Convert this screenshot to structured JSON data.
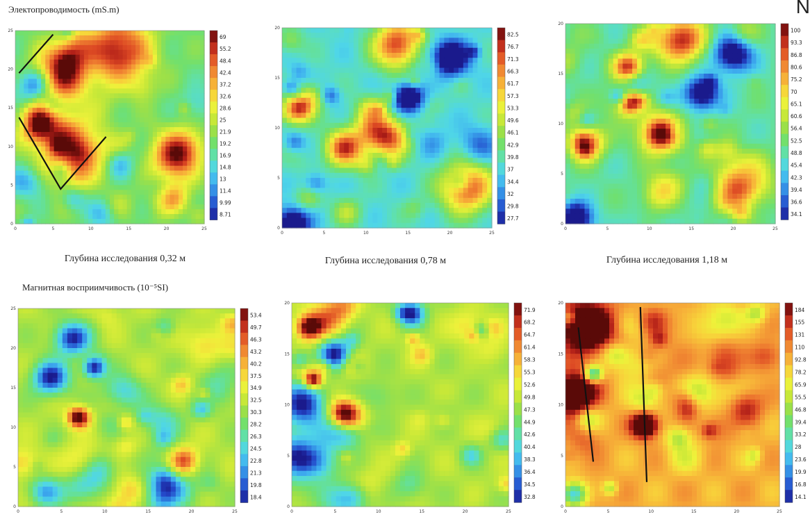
{
  "figure": {
    "top_section_title": "Электопроводимость (mS.m)",
    "bottom_section_title": "Магнитная восприимчивость (10⁻⁵SI)",
    "corner_mark": "N",
    "depth_captions": [
      "Глубина исследования 0,32 м",
      "Глубина исследования 0,78 м",
      "Глубина исследования 1,18 м"
    ]
  },
  "chart_data": [
    {
      "type": "heatmap",
      "quantity": "conductivity",
      "seed": 11,
      "hot": [
        [
          0.55,
          0.9,
          0.16
        ],
        [
          0.25,
          0.78,
          0.14
        ],
        [
          0.3,
          0.38,
          0.16
        ],
        [
          0.12,
          0.52,
          0.1
        ],
        [
          0.85,
          0.35,
          0.12
        ]
      ],
      "cold": [],
      "bias": 0.4,
      "colorbar_ticks": [
        "69",
        "55.2",
        "48.4",
        "42.4",
        "37.2",
        "32.6",
        "28.6",
        "25",
        "21.9",
        "19.2",
        "16.9",
        "14.8",
        "13",
        "11.4",
        "9.99",
        "8.71"
      ],
      "lines": [
        [
          [
            0.02,
            0.78
          ],
          [
            0.2,
            0.98
          ]
        ],
        [
          [
            0.02,
            0.55
          ],
          [
            0.24,
            0.18
          ],
          [
            0.48,
            0.45
          ]
        ]
      ],
      "x_ticks": [
        "0",
        "5",
        "10",
        "15",
        "20",
        "25"
      ],
      "y_ticks": [
        "0",
        "5",
        "10",
        "15",
        "20",
        "25"
      ]
    },
    {
      "type": "heatmap",
      "quantity": "conductivity",
      "seed": 23,
      "hot": [
        [
          0.55,
          0.92,
          0.11
        ],
        [
          0.5,
          0.45,
          0.1
        ],
        [
          0.88,
          0.2,
          0.12
        ],
        [
          0.3,
          0.4,
          0.09
        ],
        [
          0.08,
          0.6,
          0.07
        ]
      ],
      "cold": [
        [
          0.8,
          0.85,
          0.09
        ],
        [
          0.6,
          0.65,
          0.07
        ],
        [
          0.05,
          0.02,
          0.08
        ]
      ],
      "bias": 0.3,
      "colorbar_ticks": [
        "82.5",
        "76.7",
        "71.3",
        "66.3",
        "61.7",
        "57.3",
        "53.3",
        "49.6",
        "46.1",
        "42.9",
        "39.8",
        "37",
        "34.4",
        "32",
        "29.8",
        "27.7"
      ],
      "lines": [],
      "x_ticks": [
        "0",
        "5",
        "10",
        "15",
        "20",
        "25"
      ],
      "y_ticks": [
        "0",
        "5",
        "10",
        "15",
        "20"
      ]
    },
    {
      "type": "heatmap",
      "quantity": "conductivity",
      "seed": 37,
      "hot": [
        [
          0.55,
          0.92,
          0.11
        ],
        [
          0.45,
          0.45,
          0.1
        ],
        [
          0.85,
          0.22,
          0.12
        ],
        [
          0.1,
          0.4,
          0.08
        ],
        [
          0.3,
          0.78,
          0.07
        ]
      ],
      "cold": [
        [
          0.8,
          0.85,
          0.09
        ],
        [
          0.65,
          0.65,
          0.08
        ],
        [
          0.05,
          0.02,
          0.08
        ]
      ],
      "bias": 0.35,
      "colorbar_ticks": [
        "100",
        "93.3",
        "86.8",
        "80.6",
        "75.2",
        "70",
        "65.1",
        "60.6",
        "56.4",
        "52.5",
        "48.8",
        "45.4",
        "42.3",
        "39.4",
        "36.6",
        "34.1"
      ],
      "lines": [],
      "x_ticks": [
        "0",
        "5",
        "10",
        "15",
        "20",
        "25"
      ],
      "y_ticks": [
        "0",
        "5",
        "10",
        "15",
        "20"
      ]
    },
    {
      "type": "heatmap",
      "quantity": "magnetic_susceptibility",
      "seed": 51,
      "hot": [
        [
          0.28,
          0.45,
          0.05
        ]
      ],
      "cold": [
        [
          0.25,
          0.85,
          0.08
        ],
        [
          0.15,
          0.65,
          0.08
        ],
        [
          0.7,
          0.05,
          0.1
        ],
        [
          0.35,
          0.7,
          0.05
        ]
      ],
      "bias": 0.5,
      "colorbar_ticks": [
        "53.4",
        "49.7",
        "46.3",
        "43.2",
        "40.2",
        "37.5",
        "34.9",
        "32.5",
        "30.3",
        "28.2",
        "26.3",
        "24.5",
        "22.8",
        "21.3",
        "19.8",
        "18.4"
      ],
      "lines": [],
      "x_ticks": [
        "0",
        "5",
        "10",
        "15",
        "20",
        "25"
      ],
      "y_ticks": [
        "0",
        "5",
        "10",
        "15",
        "20",
        "25"
      ]
    },
    {
      "type": "heatmap",
      "quantity": "magnetic_susceptibility",
      "seed": 67,
      "hot": [
        [
          0.08,
          0.88,
          0.06
        ],
        [
          0.25,
          0.45,
          0.07
        ],
        [
          0.1,
          0.62,
          0.04
        ]
      ],
      "cold": [
        [
          0.05,
          0.5,
          0.1
        ],
        [
          0.06,
          0.25,
          0.12
        ],
        [
          0.2,
          0.75,
          0.07
        ],
        [
          0.55,
          0.95,
          0.06
        ]
      ],
      "bias": 0.5,
      "colorbar_ticks": [
        "71.9",
        "68.2",
        "64.7",
        "61.4",
        "58.3",
        "55.3",
        "52.6",
        "49.8",
        "47.3",
        "44.9",
        "42.6",
        "40.4",
        "38.3",
        "36.4",
        "34.5",
        "32.8"
      ],
      "lines": [],
      "x_ticks": [
        "0",
        "5",
        "10",
        "15",
        "20",
        "25"
      ],
      "y_ticks": [
        "0",
        "5",
        "10",
        "15",
        "20"
      ]
    },
    {
      "type": "heatmap",
      "quantity": "magnetic_susceptibility",
      "seed": 83,
      "hot": [
        [
          0.1,
          0.88,
          0.12
        ],
        [
          0.37,
          0.4,
          0.06
        ],
        [
          0.05,
          0.55,
          0.1
        ]
      ],
      "cold": [
        [
          0.13,
          0.65,
          0.04
        ],
        [
          0.04,
          0.06,
          0.06
        ]
      ],
      "bias": 0.72,
      "colorbar_ticks": [
        "184",
        "155",
        "131",
        "110",
        "92.8",
        "78.2",
        "65.9",
        "55.5",
        "46.8",
        "39.4",
        "33.2",
        "28",
        "23.6",
        "19.9",
        "16.8",
        "14.1"
      ],
      "lines": [
        [
          [
            0.06,
            0.88
          ],
          [
            0.13,
            0.22
          ]
        ],
        [
          [
            0.35,
            0.98
          ],
          [
            0.38,
            0.12
          ]
        ]
      ],
      "x_ticks": [
        "0",
        "5",
        "10",
        "15",
        "20",
        "25"
      ],
      "y_ticks": [
        "0",
        "5",
        "10",
        "15",
        "20"
      ]
    }
  ]
}
